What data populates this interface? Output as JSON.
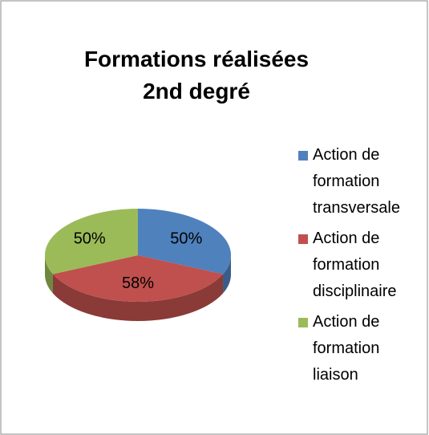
{
  "chart_data": {
    "type": "pie",
    "title": "Formations réalisées 2nd degré",
    "categories": [
      "Action de formation transversale",
      "Action de formation disciplinaire",
      "Action de formation liaison"
    ],
    "values": [
      50,
      58,
      50
    ],
    "value_labels": [
      "50%",
      "58%",
      "50%"
    ],
    "colors": [
      "#4f81bd",
      "#c0504d",
      "#9bbb59"
    ],
    "legend": "right"
  }
}
